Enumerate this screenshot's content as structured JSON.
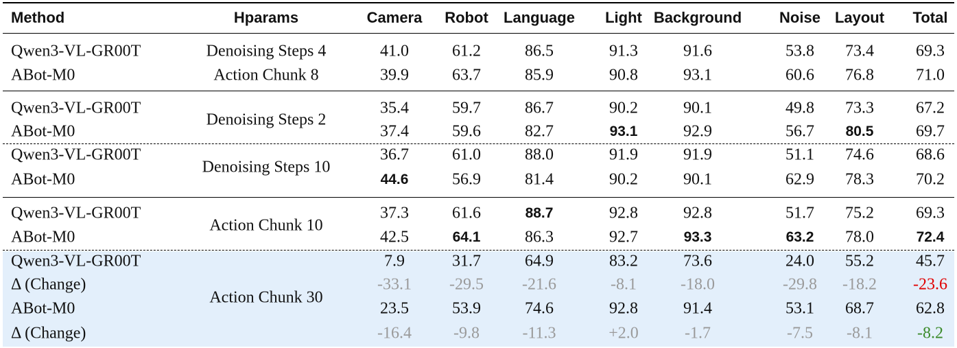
{
  "headers": [
    "Method",
    "Hparams",
    "Camera",
    "Robot",
    "Language",
    "Light",
    "Background",
    "Noise",
    "Layout",
    "Total"
  ],
  "groups": [
    {
      "hparams": [
        "Denoising Steps 4",
        "Action Chunk 8"
      ],
      "split_hparams": true,
      "rows": [
        {
          "method": "Qwen3-VL-GR00T",
          "values": [
            "41.0",
            "61.2",
            "86.5",
            "91.3",
            "91.6",
            "53.8",
            "73.4",
            "69.3"
          ],
          "bold": []
        },
        {
          "method": "ABot-M0",
          "values": [
            "39.9",
            "63.7",
            "85.9",
            "90.8",
            "93.1",
            "60.6",
            "76.8",
            "71.0"
          ],
          "bold": []
        }
      ]
    },
    {
      "hparams": [
        "Denoising Steps 2"
      ],
      "rows": [
        {
          "method": "Qwen3-VL-GR00T",
          "values": [
            "35.4",
            "59.7",
            "86.7",
            "90.2",
            "90.1",
            "49.8",
            "73.3",
            "67.2"
          ],
          "bold": []
        },
        {
          "method": "ABot-M0",
          "values": [
            "37.4",
            "59.6",
            "82.7",
            "93.1",
            "92.9",
            "56.7",
            "80.5",
            "69.7"
          ],
          "bold": [
            3,
            6
          ]
        }
      ]
    },
    {
      "hparams": [
        "Denoising Steps 10"
      ],
      "rows": [
        {
          "method": "Qwen3-VL-GR00T",
          "values": [
            "36.7",
            "61.0",
            "88.0",
            "91.9",
            "91.9",
            "51.1",
            "74.6",
            "68.6"
          ],
          "bold": []
        },
        {
          "method": "ABot-M0",
          "values": [
            "44.6",
            "56.9",
            "81.4",
            "90.2",
            "90.1",
            "62.9",
            "78.3",
            "70.2"
          ],
          "bold": [
            0
          ]
        }
      ]
    },
    {
      "hparams": [
        "Action Chunk 10"
      ],
      "rows": [
        {
          "method": "Qwen3-VL-GR00T",
          "values": [
            "37.3",
            "61.6",
            "88.7",
            "92.8",
            "92.8",
            "51.7",
            "75.2",
            "69.3"
          ],
          "bold": [
            2
          ]
        },
        {
          "method": "ABot-M0",
          "values": [
            "42.5",
            "64.1",
            "86.3",
            "92.7",
            "93.3",
            "63.2",
            "78.0",
            "72.4"
          ],
          "bold": [
            1,
            4,
            5,
            7
          ]
        }
      ]
    },
    {
      "hparams": [
        "Action Chunk 30"
      ],
      "highlighted": true,
      "rows": [
        {
          "method": "Qwen3-VL-GR00T",
          "values": [
            "7.9",
            "31.7",
            "64.9",
            "83.2",
            "73.6",
            "24.0",
            "55.2",
            "45.7"
          ],
          "bold": []
        },
        {
          "method": "Δ (Change)",
          "values": [
            "-33.1",
            "-29.5",
            "-21.6",
            "-8.1",
            "-18.0",
            "-29.8",
            "-18.2",
            "-23.6"
          ],
          "bold": [],
          "delta": true,
          "total_color": "#e00000"
        },
        {
          "method": "ABot-M0",
          "values": [
            "23.5",
            "53.9",
            "74.6",
            "92.8",
            "91.4",
            "53.1",
            "68.7",
            "62.8"
          ],
          "bold": []
        },
        {
          "method": "Δ (Change)",
          "values": [
            "-16.4",
            "-9.8",
            "-11.3",
            "+2.0",
            "-1.7",
            "-7.5",
            "-8.1",
            "-8.2"
          ],
          "bold": [],
          "delta": true,
          "total_color": "#3a8a2a"
        }
      ]
    }
  ],
  "colors": {
    "highlight_bg": "#e3effb",
    "delta_gray": "#9a9a9a"
  }
}
